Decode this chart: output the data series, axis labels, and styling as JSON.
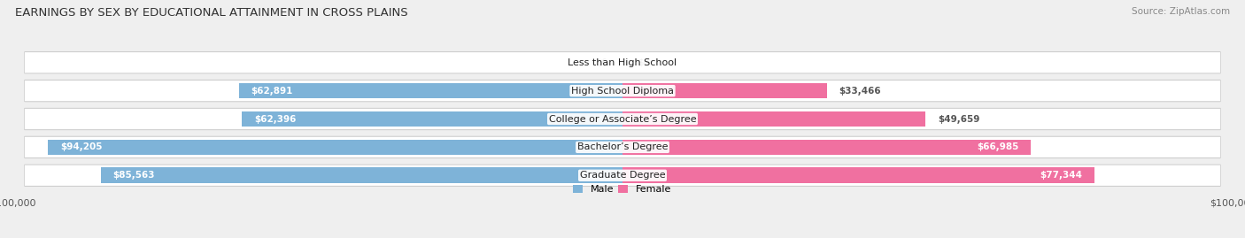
{
  "title": "EARNINGS BY SEX BY EDUCATIONAL ATTAINMENT IN CROSS PLAINS",
  "source": "Source: ZipAtlas.com",
  "categories": [
    "Less than High School",
    "High School Diploma",
    "College or Associate’s Degree",
    "Bachelor’s Degree",
    "Graduate Degree"
  ],
  "male_values": [
    0,
    62891,
    62396,
    94205,
    85563
  ],
  "female_values": [
    0,
    33466,
    49659,
    66985,
    77344
  ],
  "male_color": "#7EB3D8",
  "female_color": "#F070A0",
  "male_label": "Male",
  "female_label": "Female",
  "xlim": 100000,
  "fig_bg_color": "#EFEFEF",
  "row_bg_color": "#FAFAFA",
  "row_border_color": "#CCCCCC",
  "title_fontsize": 9.5,
  "source_fontsize": 7.5,
  "label_fontsize": 7.5,
  "tick_fontsize": 8,
  "category_fontsize": 8
}
